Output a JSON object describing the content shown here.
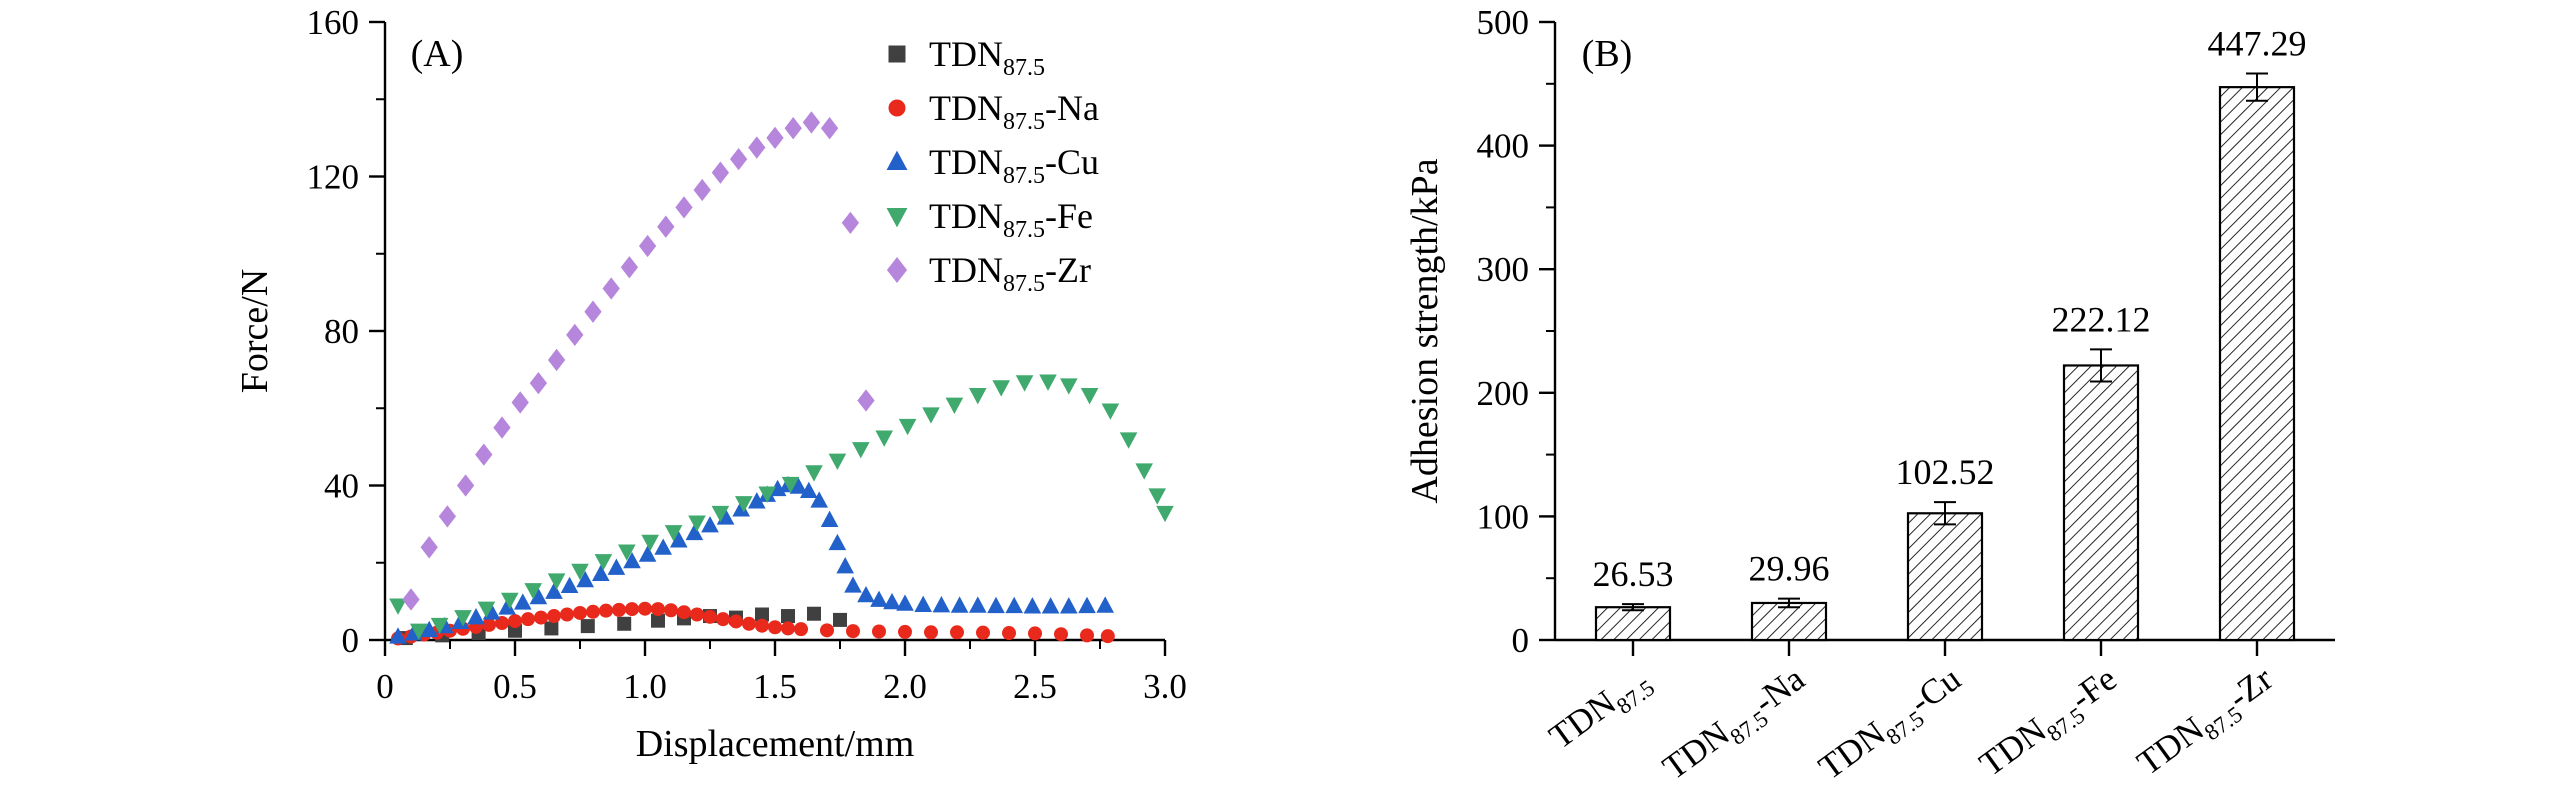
{
  "figure": {
    "background": "#ffffff"
  },
  "chart_data": [
    {
      "type": "scatter",
      "panel_label": "(A)",
      "xlabel": "Displacement/mm",
      "ylabel": "Force/N",
      "xlim": [
        0,
        3.0
      ],
      "ylim": [
        0,
        160
      ],
      "xticks": [
        0,
        0.5,
        1.0,
        1.5,
        2.0,
        2.5,
        3.0
      ],
      "xtick_labels": [
        "0",
        "0.5",
        "1.0",
        "1.5",
        "2.0",
        "2.5",
        "3.0"
      ],
      "x_minor_step": 0.25,
      "yticks": [
        0,
        40,
        80,
        120,
        160
      ],
      "y_minor_step": 20,
      "grid": false,
      "legend_position": "top-right-inside",
      "series": [
        {
          "name": {
            "base": "TDN",
            "sub": "87.5",
            "suffix": ""
          },
          "marker": "square",
          "color": "#404040",
          "points": [
            [
              0.08,
              0.5
            ],
            [
              0.22,
              1.2
            ],
            [
              0.36,
              1.8
            ],
            [
              0.5,
              2.4
            ],
            [
              0.64,
              3.0
            ],
            [
              0.78,
              3.6
            ],
            [
              0.92,
              4.2
            ],
            [
              1.05,
              5.0
            ],
            [
              1.15,
              5.6
            ],
            [
              1.25,
              6.2
            ],
            [
              1.35,
              5.8
            ],
            [
              1.45,
              6.6
            ],
            [
              1.55,
              6.2
            ],
            [
              1.65,
              6.8
            ],
            [
              1.75,
              5.2
            ]
          ]
        },
        {
          "name": {
            "base": "TDN",
            "sub": "87.5",
            "suffix": "-Na"
          },
          "marker": "circle",
          "color": "#e8291c",
          "points": [
            [
              0.05,
              0.4
            ],
            [
              0.1,
              0.9
            ],
            [
              0.15,
              1.4
            ],
            [
              0.2,
              1.9
            ],
            [
              0.25,
              2.4
            ],
            [
              0.3,
              2.9
            ],
            [
              0.35,
              3.4
            ],
            [
              0.4,
              3.9
            ],
            [
              0.45,
              4.4
            ],
            [
              0.5,
              4.9
            ],
            [
              0.55,
              5.4
            ],
            [
              0.6,
              5.8
            ],
            [
              0.65,
              6.2
            ],
            [
              0.7,
              6.6
            ],
            [
              0.75,
              7.0
            ],
            [
              0.8,
              7.3
            ],
            [
              0.85,
              7.6
            ],
            [
              0.9,
              7.8
            ],
            [
              0.95,
              8.0
            ],
            [
              1.0,
              8.1
            ],
            [
              1.05,
              8.0
            ],
            [
              1.1,
              7.7
            ],
            [
              1.15,
              7.2
            ],
            [
              1.2,
              6.6
            ],
            [
              1.25,
              6.0
            ],
            [
              1.3,
              5.4
            ],
            [
              1.35,
              4.8
            ],
            [
              1.4,
              4.2
            ],
            [
              1.45,
              3.7
            ],
            [
              1.5,
              3.3
            ],
            [
              1.55,
              3.0
            ],
            [
              1.6,
              2.8
            ],
            [
              1.7,
              2.5
            ],
            [
              1.8,
              2.3
            ],
            [
              1.9,
              2.2
            ],
            [
              2.0,
              2.1
            ],
            [
              2.1,
              2.0
            ],
            [
              2.2,
              2.0
            ],
            [
              2.3,
              1.9
            ],
            [
              2.4,
              1.8
            ],
            [
              2.5,
              1.7
            ],
            [
              2.6,
              1.5
            ],
            [
              2.7,
              1.2
            ],
            [
              2.78,
              1.0
            ]
          ]
        },
        {
          "name": {
            "base": "TDN",
            "sub": "87.5",
            "suffix": "-Cu"
          },
          "marker": "triangle-up",
          "color": "#2261c9",
          "points": [
            [
              0.05,
              0.8
            ],
            [
              0.11,
              1.6
            ],
            [
              0.17,
              2.5
            ],
            [
              0.23,
              3.5
            ],
            [
              0.29,
              4.6
            ],
            [
              0.35,
              5.8
            ],
            [
              0.41,
              7.0
            ],
            [
              0.47,
              8.3
            ],
            [
              0.53,
              9.6
            ],
            [
              0.59,
              11.0
            ],
            [
              0.65,
              12.4
            ],
            [
              0.71,
              13.9
            ],
            [
              0.77,
              15.4
            ],
            [
              0.83,
              17.0
            ],
            [
              0.89,
              18.6
            ],
            [
              0.95,
              20.3
            ],
            [
              1.01,
              22.0
            ],
            [
              1.07,
              23.8
            ],
            [
              1.13,
              25.7
            ],
            [
              1.19,
              27.6
            ],
            [
              1.25,
              29.6
            ],
            [
              1.31,
              31.6
            ],
            [
              1.37,
              33.7
            ],
            [
              1.43,
              35.8
            ],
            [
              1.47,
              37.5
            ],
            [
              1.51,
              39.0
            ],
            [
              1.55,
              40.0
            ],
            [
              1.59,
              39.6
            ],
            [
              1.63,
              38.5
            ],
            [
              1.67,
              36.0
            ],
            [
              1.71,
              31.0
            ],
            [
              1.74,
              25.0
            ],
            [
              1.77,
              19.0
            ],
            [
              1.8,
              14.0
            ],
            [
              1.85,
              11.5
            ],
            [
              1.9,
              10.3
            ],
            [
              1.95,
              9.7
            ],
            [
              2.0,
              9.3
            ],
            [
              2.07,
              9.0
            ],
            [
              2.14,
              8.9
            ],
            [
              2.21,
              8.8
            ],
            [
              2.28,
              8.8
            ],
            [
              2.35,
              8.7
            ],
            [
              2.42,
              8.7
            ],
            [
              2.49,
              8.6
            ],
            [
              2.56,
              8.6
            ],
            [
              2.63,
              8.6
            ],
            [
              2.7,
              8.7
            ],
            [
              2.77,
              8.8
            ]
          ]
        },
        {
          "name": {
            "base": "TDN",
            "sub": "87.5",
            "suffix": "-Fe"
          },
          "marker": "triangle-down",
          "color": "#3fa96e",
          "points": [
            [
              0.05,
              9.0
            ],
            [
              0.13,
              2.5
            ],
            [
              0.21,
              4.0
            ],
            [
              0.3,
              6.0
            ],
            [
              0.39,
              8.2
            ],
            [
              0.48,
              10.5
            ],
            [
              0.57,
              13.0
            ],
            [
              0.66,
              15.5
            ],
            [
              0.75,
              18.0
            ],
            [
              0.84,
              20.5
            ],
            [
              0.93,
              23.0
            ],
            [
              1.02,
              25.5
            ],
            [
              1.11,
              28.0
            ],
            [
              1.2,
              30.5
            ],
            [
              1.29,
              33.0
            ],
            [
              1.38,
              35.5
            ],
            [
              1.47,
              38.0
            ],
            [
              1.56,
              40.5
            ],
            [
              1.65,
              43.5
            ],
            [
              1.74,
              46.5
            ],
            [
              1.83,
              49.5
            ],
            [
              1.92,
              52.5
            ],
            [
              2.01,
              55.5
            ],
            [
              2.1,
              58.5
            ],
            [
              2.19,
              61.0
            ],
            [
              2.28,
              63.5
            ],
            [
              2.37,
              65.5
            ],
            [
              2.46,
              66.8
            ],
            [
              2.55,
              67.0
            ],
            [
              2.63,
              66.0
            ],
            [
              2.71,
              63.5
            ],
            [
              2.79,
              59.5
            ],
            [
              2.86,
              52.0
            ],
            [
              2.92,
              44.0
            ],
            [
              2.97,
              37.5
            ],
            [
              3.0,
              33.0
            ]
          ]
        },
        {
          "name": {
            "base": "TDN",
            "sub": "87.5",
            "suffix": "-Zr"
          },
          "marker": "diamond",
          "color": "#b686dd",
          "points": [
            [
              0.1,
              10.5
            ],
            [
              0.17,
              24.0
            ],
            [
              0.24,
              32.0
            ],
            [
              0.31,
              40.0
            ],
            [
              0.38,
              48.0
            ],
            [
              0.45,
              55.0
            ],
            [
              0.52,
              61.5
            ],
            [
              0.59,
              66.5
            ],
            [
              0.66,
              72.5
            ],
            [
              0.73,
              79.0
            ],
            [
              0.8,
              85.0
            ],
            [
              0.87,
              91.0
            ],
            [
              0.94,
              96.5
            ],
            [
              1.01,
              102.0
            ],
            [
              1.08,
              107.0
            ],
            [
              1.15,
              112.0
            ],
            [
              1.22,
              116.5
            ],
            [
              1.29,
              121.0
            ],
            [
              1.36,
              124.5
            ],
            [
              1.43,
              127.5
            ],
            [
              1.5,
              130.0
            ],
            [
              1.57,
              132.5
            ],
            [
              1.64,
              134.0
            ],
            [
              1.71,
              132.5
            ],
            [
              1.79,
              108.0
            ],
            [
              1.85,
              62.0
            ]
          ]
        }
      ]
    },
    {
      "type": "bar",
      "panel_label": "(B)",
      "xlabel": "",
      "ylabel": "Adhesion strength/kPa",
      "ylim": [
        0,
        500
      ],
      "yticks": [
        0,
        100,
        200,
        300,
        400,
        500
      ],
      "y_minor_step": 50,
      "grid": false,
      "categories": [
        {
          "base": "TDN",
          "sub": "87.5",
          "suffix": ""
        },
        {
          "base": "TDN",
          "sub": "87.5",
          "suffix": "-Na"
        },
        {
          "base": "TDN",
          "sub": "87.5",
          "suffix": "-Cu"
        },
        {
          "base": "TDN",
          "sub": "87.5",
          "suffix": "-Fe"
        },
        {
          "base": "TDN",
          "sub": "87.5",
          "suffix": "-Zr"
        }
      ],
      "values": [
        26.53,
        29.96,
        102.52,
        222.12,
        447.29
      ],
      "errors": [
        2.5,
        3.5,
        9,
        13,
        11
      ],
      "value_labels": [
        "26.53",
        "29.96",
        "102.52",
        "222.12",
        "447.29"
      ],
      "bar_style": {
        "fill": "#ffffff",
        "hatch": "diagonal",
        "edge": "#000000"
      }
    }
  ]
}
